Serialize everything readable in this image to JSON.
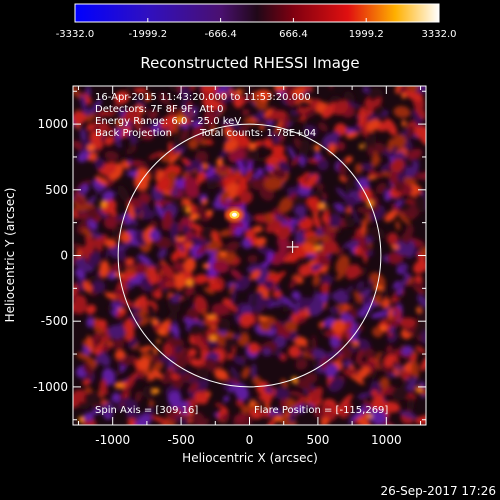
{
  "colorbar": {
    "ticks": [
      "-3332.0",
      "-1999.2",
      "-666.4",
      "666.4",
      "1999.2",
      "3332.0"
    ],
    "range": [
      -3332.0,
      3332.0
    ]
  },
  "chart_data": {
    "type": "heatmap",
    "title": "Reconstructed RHESSI Image",
    "xlabel": "Heliocentric X (arcsec)",
    "ylabel": "Heliocentric Y (arcsec)",
    "xlim": [
      -1290,
      1290
    ],
    "ylim": [
      -1290,
      1290
    ],
    "x_ticks": [
      "-1000",
      "-500",
      "0",
      "500",
      "1000"
    ],
    "y_ticks": [
      "1000",
      "500",
      "0",
      "-500",
      "-1000"
    ],
    "x_tick_values": [
      -1000,
      -500,
      0,
      500,
      1000
    ],
    "y_tick_values": [
      1000,
      500,
      0,
      -500,
      -1000
    ],
    "solar_limb_radius_arcsec": 960,
    "bright_source": {
      "x": -110,
      "y": 310
    },
    "flare_marker": {
      "x": 315,
      "y": 65
    },
    "info_lines": [
      "16-Apr-2015 11:43:20.000 to 11:53:20.000",
      "Detectors: 7F 8F 9F, Att 0",
      "Energy Range: 6.0 - 25.0 keV",
      "Back Projection",
      "Total counts: 1.78E+04"
    ],
    "spin_axis": "Spin Axis = [309,16]",
    "flare_position": "Flare Position = [-115,269]"
  },
  "footer": {
    "date": "26-Sep-2017 17:26"
  },
  "colors": {
    "background": "#000000",
    "axis": "#ffffff"
  }
}
